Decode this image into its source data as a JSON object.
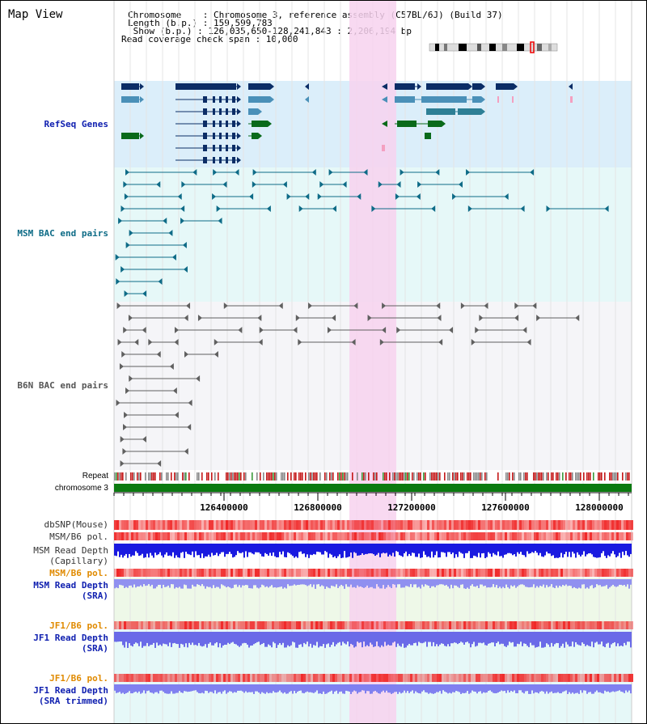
{
  "title": "Map View",
  "info": {
    "chromosome_line": "Chromosome    : Chromosome 3, reference assembly (C57BL/6J) (Build 37)",
    "length_line": "Length (b.p.) : 159,599,783",
    "show_line": " Show (b.p.) : 126,035,650-128,241,843 : 2,206,194 bp",
    "coverage_line": "Read coverage check span : 10,000"
  },
  "tracks": {
    "refseq": "RefSeq Genes",
    "msm_bac": "MSM BAC end pairs",
    "b6n_bac": "B6N BAC end pairs",
    "repeat": "Repeat",
    "chromosome": "chromosome 3",
    "dbsnp": "dbSNP(Mouse)",
    "msm_b6_pol": "MSM/B6 pol.",
    "msm_depth_cap_1": "MSM Read Depth",
    "msm_depth_cap_2": "(Capillary)",
    "msm_b6_pol_2": "MSM/B6 pol.",
    "msm_depth_sra_1": "MSM Read Depth",
    "msm_depth_sra_2": "(SRA)",
    "jf1_b6_pol": "JF1/B6 pol.",
    "jf1_depth_sra_1": "JF1 Read Depth",
    "jf1_depth_sra_2": "(SRA)",
    "jf1_b6_pol_2": "JF1/B6 pol.",
    "jf1_depth_trim_1": "JF1 Read Depth",
    "jf1_depth_trim_2": "(SRA trimmed)"
  },
  "axis": {
    "ticks": [
      "126400000",
      "126800000",
      "127200000",
      "127600000",
      "128000000"
    ]
  },
  "colors": {
    "refseq_bg": "#dbeefa",
    "msm_bac_bg": "#e6f8f8",
    "b6n_bac_bg": "#f5f5f8",
    "highlight": "#f7d2ee",
    "gene_dark": "#0b2d66",
    "gene_mid": "#4a90b8",
    "gene_teal": "#2e7f95",
    "gene_green": "#0a6a1a",
    "msm_line": "#0e6b87",
    "b6n_line": "#606060",
    "chromosome_green": "#0b7a10",
    "track_blue_label": "#1020b0",
    "track_orange_label": "#e08a00",
    "msm_bac_label": "#0d6b86",
    "b6n_bac_label": "#555555"
  }
}
